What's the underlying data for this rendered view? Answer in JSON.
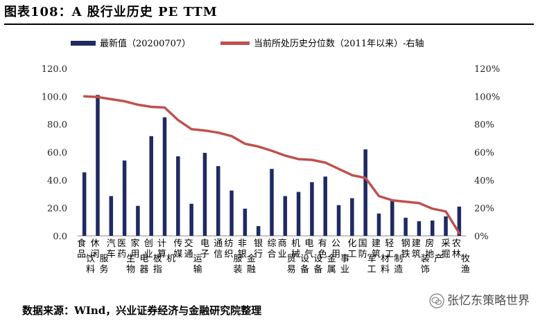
{
  "header": {
    "title": "图表108：A 股行业历史 PE TTM"
  },
  "footer": {
    "source": "数据来源：WInd，兴业证券经济与金融研究院整理"
  },
  "watermark": {
    "text": "张忆东策略世界"
  },
  "colors": {
    "bar": "#1f2a63",
    "line": "#c0504d",
    "axis": "#888888"
  },
  "chart_data": {
    "type": "bar",
    "title": "A 股行业历史 PE TTM",
    "categories": [
      "食品饮料",
      "休闲服务",
      "汽车",
      "医药生物",
      "家用电器",
      "创业板指",
      "计算机",
      "传媒",
      "交通运输",
      "电子",
      "通信",
      "纺织服装",
      "非银金融",
      "银行",
      "综合",
      "商业贸易",
      "机械设备",
      "电气设备",
      "有色金属",
      "公用事业",
      "化工",
      "国防军工",
      "建筑材料",
      "轻工制造",
      "钢铁",
      "建筑装饰",
      "房地产",
      "采掘",
      "农林牧渔"
    ],
    "series": [
      {
        "name": "最新值（20200707）",
        "type": "bar",
        "axis": "left",
        "values": [
          45.5,
          101.0,
          28.5,
          54.0,
          21.5,
          71.5,
          85.0,
          57.0,
          23.0,
          59.5,
          50.0,
          32.5,
          19.5,
          7.0,
          48.0,
          28.5,
          31.5,
          38.5,
          42.5,
          22.0,
          27.0,
          62.0,
          16.0,
          26.0,
          13.0,
          10.5,
          11.0,
          14.0,
          21.0
        ]
      },
      {
        "name": "当前所处历史分位数（2011年以来）-右轴",
        "type": "line",
        "axis": "right",
        "unit": "%",
        "values": [
          100,
          99.5,
          98,
          96.5,
          94,
          92.5,
          92,
          83,
          76.5,
          75.5,
          74,
          71.5,
          66,
          64,
          61,
          57.5,
          55,
          54.5,
          52.5,
          48,
          43.5,
          41.5,
          28.5,
          25.5,
          24.5,
          23.5,
          19.5,
          17.5,
          2
        ]
      }
    ],
    "y_left": {
      "min": 0,
      "max": 120,
      "step": 20,
      "ticks": [
        "0.0",
        "20.0",
        "40.0",
        "60.0",
        "80.0",
        "100.0",
        "120.0"
      ]
    },
    "y_right": {
      "min": 0,
      "max": 120,
      "step": 20,
      "ticks": [
        "0%",
        "20%",
        "40%",
        "60%",
        "80%",
        "100%",
        "120%"
      ]
    },
    "legend": {
      "position": "top",
      "items": [
        "最新值（20200707）",
        "当前所处历史分位数（2011年以来）-右轴"
      ]
    }
  }
}
